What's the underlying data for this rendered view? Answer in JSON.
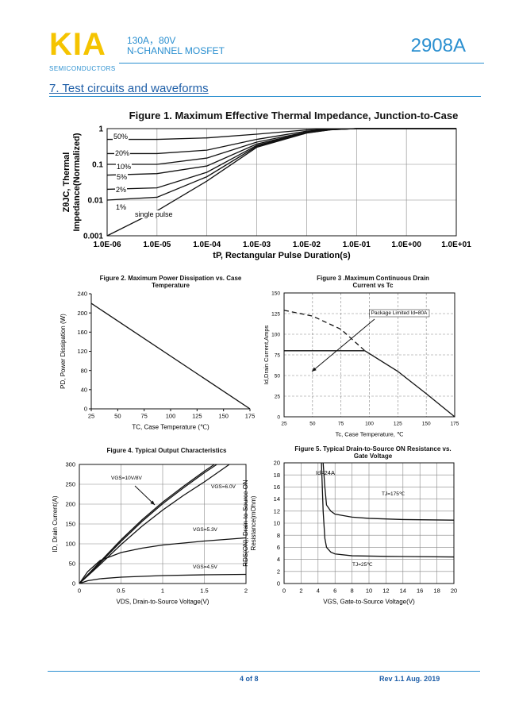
{
  "header": {
    "logo": "KIA",
    "logo_sub": "SEMICONDUCTORS",
    "spec_line1": "130A，80V",
    "spec_line2": "N-CHANNEL MOSFET",
    "part_number": "2908A"
  },
  "section_title": "7. Test circuits and waveforms",
  "chart_data": [
    {
      "type": "line",
      "title": "Figure 1. Maximum Effective Thermal Impedance, Junction-to-Case",
      "xlabel": "tP, Rectangular Pulse Duration(s)",
      "ylabel": [
        "ZθJC, Thermal",
        "Impedance(Normalized)"
      ],
      "xscale": "log",
      "yscale": "log",
      "grid": true,
      "color": "#111",
      "x": [
        1e-06,
        1e-05,
        0.0001,
        0.001,
        0.01,
        0.03,
        0.1,
        10
      ],
      "xlim": [
        1e-06,
        10
      ],
      "ylim": [
        0.001,
        1
      ],
      "xticks": [
        {
          "value": 1e-06,
          "label": "1.0E-06"
        },
        {
          "value": 1e-05,
          "label": "1.0E-05"
        },
        {
          "value": 0.0001,
          "label": "1.0E-04"
        },
        {
          "value": 0.001,
          "label": "1.0E-03"
        },
        {
          "value": 0.01,
          "label": "1.0E-02"
        },
        {
          "value": 0.1,
          "label": "1.0E-01"
        },
        {
          "value": 1,
          "label": "1.0E+00"
        },
        {
          "value": 10,
          "label": "1.0E+01"
        }
      ],
      "yticks": [
        0.001,
        0.01,
        0.1,
        1
      ],
      "series": [
        {
          "name": "50%",
          "values": [
            0.5,
            0.5,
            0.55,
            0.7,
            0.92,
            0.98,
            1,
            1
          ]
        },
        {
          "name": "20%",
          "values": [
            0.2,
            0.2,
            0.25,
            0.5,
            0.85,
            0.96,
            1,
            1
          ]
        },
        {
          "name": "10%",
          "values": [
            0.1,
            0.1,
            0.15,
            0.42,
            0.8,
            0.95,
            1,
            1
          ]
        },
        {
          "name": "5%",
          "values": [
            0.05,
            0.055,
            0.09,
            0.37,
            0.78,
            0.94,
            1,
            1
          ]
        },
        {
          "name": "2%",
          "values": [
            0.02,
            0.022,
            0.06,
            0.34,
            0.77,
            0.94,
            1,
            1
          ]
        },
        {
          "name": "1%",
          "values": [
            0.01,
            0.012,
            0.045,
            0.32,
            0.76,
            0.93,
            1,
            1
          ]
        },
        {
          "name": "single pulse",
          "values": [
            0.001,
            0.005,
            0.034,
            0.3,
            0.75,
            0.93,
            1,
            1
          ]
        }
      ]
    },
    {
      "type": "line",
      "title": "Figure 2. Maximum Power Dissipation vs. Case Temperature",
      "xlabel": "TC, Case Temperature (℃)",
      "ylabel": [
        "PD, Power Dissipation (W)"
      ],
      "grid": false,
      "color": "#111",
      "xlim": [
        25,
        175
      ],
      "ylim": [
        0,
        240
      ],
      "xticks": [
        25,
        50,
        75,
        100,
        125,
        150,
        175
      ],
      "yticks": [
        0,
        40,
        80,
        120,
        160,
        200,
        240
      ],
      "series": [
        {
          "x": [
            25,
            175
          ],
          "values": [
            220,
            0
          ]
        }
      ]
    },
    {
      "type": "line",
      "title": "Figure 3 .Maximum Continuous Drain Current  vs Tc",
      "xlabel": "Tc, Case Temperature, ℃",
      "ylabel": [
        "Id,Drain Current,Amps"
      ],
      "grid": true,
      "grid_style": "dashed",
      "color": "#111",
      "xlim": [
        25,
        175
      ],
      "ylim": [
        0,
        150
      ],
      "xticks": [
        25,
        50,
        75,
        100,
        125,
        150,
        175
      ],
      "yticks": [
        0,
        25,
        50,
        75,
        100,
        125,
        150
      ],
      "annotations": [
        "Package Limited Id=80A"
      ],
      "series": [
        {
          "x": [
            25,
            50,
            75,
            96
          ],
          "values": [
            129,
            122,
            106,
            80
          ],
          "dashed": true
        },
        {
          "x": [
            25,
            96
          ],
          "values": [
            80,
            80
          ]
        },
        {
          "x": [
            96,
            125,
            150,
            175
          ],
          "values": [
            80,
            55,
            28,
            0
          ]
        }
      ]
    },
    {
      "type": "line",
      "title": "Figure 4. Typical Output Characteristics",
      "xlabel": "VDS, Drain-to-Source Voltage(V)",
      "ylabel": [
        "ID, Drain Current(A)"
      ],
      "grid": true,
      "color": "#111",
      "xlim": [
        0,
        2
      ],
      "ylim": [
        0,
        300
      ],
      "xticks": [
        0,
        0.5,
        1,
        1.5,
        2
      ],
      "yticks": [
        0,
        50,
        100,
        150,
        200,
        250,
        300
      ],
      "series": [
        {
          "name": "VGS=10V/8V",
          "x": [
            0,
            0.25,
            0.5,
            0.75,
            1,
            1.25,
            1.5,
            1.62
          ],
          "values": [
            0,
            55,
            110,
            160,
            205,
            245,
            283,
            300
          ]
        },
        {
          "x": [
            0,
            0.25,
            0.5,
            0.75,
            1,
            1.25,
            1.5,
            1.65
          ],
          "values": [
            0,
            52,
            106,
            156,
            201,
            241,
            279,
            300
          ]
        },
        {
          "name": "VGS=6.0V",
          "x": [
            0,
            0.25,
            0.5,
            0.75,
            1,
            1.25,
            1.5,
            1.8
          ],
          "values": [
            0,
            48,
            98,
            144,
            185,
            222,
            256,
            300
          ]
        },
        {
          "name": "VGS=5.3V",
          "x": [
            0,
            0.1,
            0.25,
            0.5,
            0.75,
            1,
            1.5,
            2
          ],
          "values": [
            0,
            30,
            58,
            78,
            89,
            97,
            107,
            115
          ]
        },
        {
          "name": "VGS=4.5V",
          "x": [
            0,
            0.1,
            0.25,
            0.5,
            1,
            1.5,
            2
          ],
          "values": [
            0,
            7,
            12,
            16,
            20,
            22,
            23
          ]
        }
      ]
    },
    {
      "type": "line",
      "title": "Figure 5. Typical Drain-to-Source ON Resistance vs. Gate Voltage",
      "xlabel": "VGS, Gate-to-Source Voltage(V)",
      "ylabel": [
        "RDS(ON), Drain-to-Source ON",
        "Resistance(mOhm)"
      ],
      "grid": true,
      "color": "#111",
      "xlim": [
        0,
        20
      ],
      "ylim": [
        0,
        20
      ],
      "xticks": [
        0,
        2,
        4,
        6,
        8,
        10,
        12,
        14,
        16,
        18,
        20
      ],
      "yticks": [
        0,
        2,
        4,
        6,
        8,
        10,
        12,
        14,
        16,
        18,
        20
      ],
      "annotations": [
        "Id=24A"
      ],
      "series": [
        {
          "name": "TJ=175℃",
          "x": [
            4.6,
            4.8,
            5,
            5.5,
            6,
            8,
            10,
            14,
            20
          ],
          "values": [
            20,
            16,
            13,
            12,
            11.5,
            11,
            10.8,
            10.6,
            10.5
          ]
        },
        {
          "name": "TJ=25℃",
          "x": [
            4.4,
            4.6,
            4.8,
            5,
            5.5,
            6,
            8,
            12,
            20
          ],
          "values": [
            20,
            12,
            7.5,
            6,
            5.2,
            4.9,
            4.6,
            4.5,
            4.4
          ]
        }
      ]
    }
  ],
  "footer": {
    "page": "4 of 8",
    "revision": "Rev 1.1 Aug. 2019"
  }
}
